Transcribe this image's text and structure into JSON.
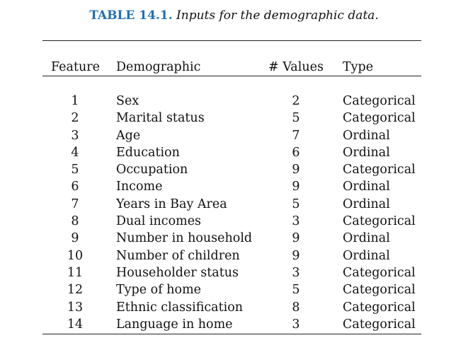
{
  "caption": {
    "label": "TABLE 14.1.",
    "text": "Inputs for the demographic data."
  },
  "columns": {
    "feature": "Feature",
    "demographic": "Demographic",
    "values": "# Values",
    "type": "Type"
  },
  "rows": [
    {
      "feature": "1",
      "demographic": "Sex",
      "values": "2",
      "type": "Categorical"
    },
    {
      "feature": "2",
      "demographic": "Marital status",
      "values": "5",
      "type": "Categorical"
    },
    {
      "feature": "3",
      "demographic": "Age",
      "values": "7",
      "type": "Ordinal"
    },
    {
      "feature": "4",
      "demographic": "Education",
      "values": "6",
      "type": "Ordinal"
    },
    {
      "feature": "5",
      "demographic": "Occupation",
      "values": "9",
      "type": "Categorical"
    },
    {
      "feature": "6",
      "demographic": "Income",
      "values": "9",
      "type": "Ordinal"
    },
    {
      "feature": "7",
      "demographic": "Years in Bay Area",
      "values": "5",
      "type": "Ordinal"
    },
    {
      "feature": "8",
      "demographic": "Dual incomes",
      "values": "3",
      "type": "Categorical"
    },
    {
      "feature": "9",
      "demographic": "Number in household",
      "values": "9",
      "type": "Ordinal"
    },
    {
      "feature": "10",
      "demographic": "Number of children",
      "values": "9",
      "type": "Ordinal"
    },
    {
      "feature": "11",
      "demographic": "Householder status",
      "values": "3",
      "type": "Categorical"
    },
    {
      "feature": "12",
      "demographic": "Type of home",
      "values": "5",
      "type": "Categorical"
    },
    {
      "feature": "13",
      "demographic": "Ethnic classification",
      "values": "8",
      "type": "Categorical"
    },
    {
      "feature": "14",
      "demographic": "Language in home",
      "values": "3",
      "type": "Categorical"
    }
  ]
}
